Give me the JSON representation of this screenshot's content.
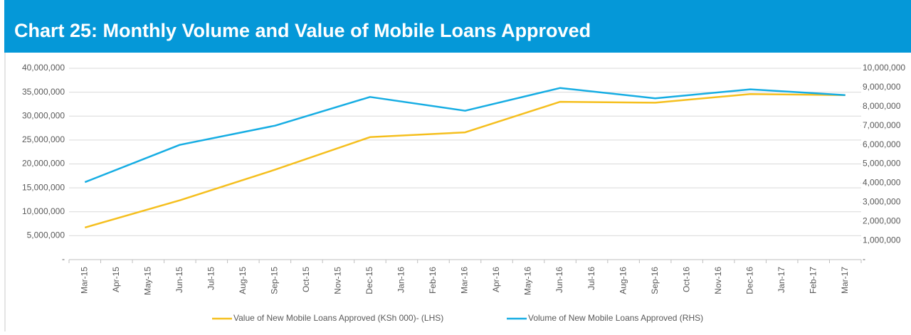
{
  "chart_data": {
    "type": "line",
    "title": "Chart 25: Monthly Volume and Value of Mobile Loans Approved",
    "categories": [
      "Mar-15",
      "Apr-15",
      "May-15",
      "Jun-15",
      "Jul-15",
      "Aug-15",
      "Sep-15",
      "Oct-15",
      "Nov-15",
      "Dec-15",
      "Jan-16",
      "Feb-16",
      "Mar-16",
      "Apr-16",
      "May-16",
      "Jun-16",
      "Jul-16",
      "Aug-16",
      "Sep-16",
      "Oct-16",
      "Nov-16",
      "Dec-16",
      "Jan-17",
      "Feb-17",
      "Mar-17"
    ],
    "series": [
      {
        "name": "Value of New Mobile Loans Approved (KSh 000)- (LHS)",
        "color": "#f5bf1e",
        "x": [
          "Mar-15",
          "Jun-15",
          "Sep-15",
          "Dec-15",
          "Mar-16",
          "Jun-16",
          "Sep-16",
          "Dec-16",
          "Mar-17"
        ],
        "values": [
          6700000,
          12400000,
          18800000,
          25600000,
          26600000,
          33000000,
          32800000,
          34600000,
          34400000
        ]
      },
      {
        "name": "Volume of New Mobile Loans Approved (RHS)",
        "color": "#16ade3",
        "axis": "y2",
        "x": [
          "Mar-15",
          "Jun-15",
          "Sep-15",
          "Dec-15",
          "Mar-16",
          "Jun-16",
          "Sep-16",
          "Dec-16",
          "Mar-17"
        ],
        "values": [
          4050000,
          6000000,
          7000000,
          8500000,
          7780000,
          8970000,
          8430000,
          8900000,
          8600000
        ]
      }
    ],
    "ylim": [
      0,
      40000000
    ],
    "yticks": [
      {
        "value": 0,
        "label": "-"
      },
      {
        "value": 5000000,
        "label": "5,000,000"
      },
      {
        "value": 10000000,
        "label": "10,000,000"
      },
      {
        "value": 15000000,
        "label": "15,000,000"
      },
      {
        "value": 20000000,
        "label": "20,000,000"
      },
      {
        "value": 25000000,
        "label": "25,000,000"
      },
      {
        "value": 30000000,
        "label": "30,000,000"
      },
      {
        "value": 35000000,
        "label": "35,000,000"
      },
      {
        "value": 40000000,
        "label": "40,000,000"
      }
    ],
    "y2lim": [
      0,
      10000000
    ],
    "y2ticks": [
      {
        "value": 0,
        "label": "-"
      },
      {
        "value": 1000000,
        "label": "1,000,000"
      },
      {
        "value": 2000000,
        "label": "2,000,000"
      },
      {
        "value": 3000000,
        "label": "3,000,000"
      },
      {
        "value": 4000000,
        "label": "4,000,000"
      },
      {
        "value": 5000000,
        "label": "5,000,000"
      },
      {
        "value": 6000000,
        "label": "6,000,000"
      },
      {
        "value": 7000000,
        "label": "7,000,000"
      },
      {
        "value": 8000000,
        "label": "8,000,000"
      },
      {
        "value": 9000000,
        "label": "9,000,000"
      },
      {
        "value": 10000000,
        "label": "10,000,000"
      }
    ],
    "grid": true,
    "legend": "bottom"
  }
}
